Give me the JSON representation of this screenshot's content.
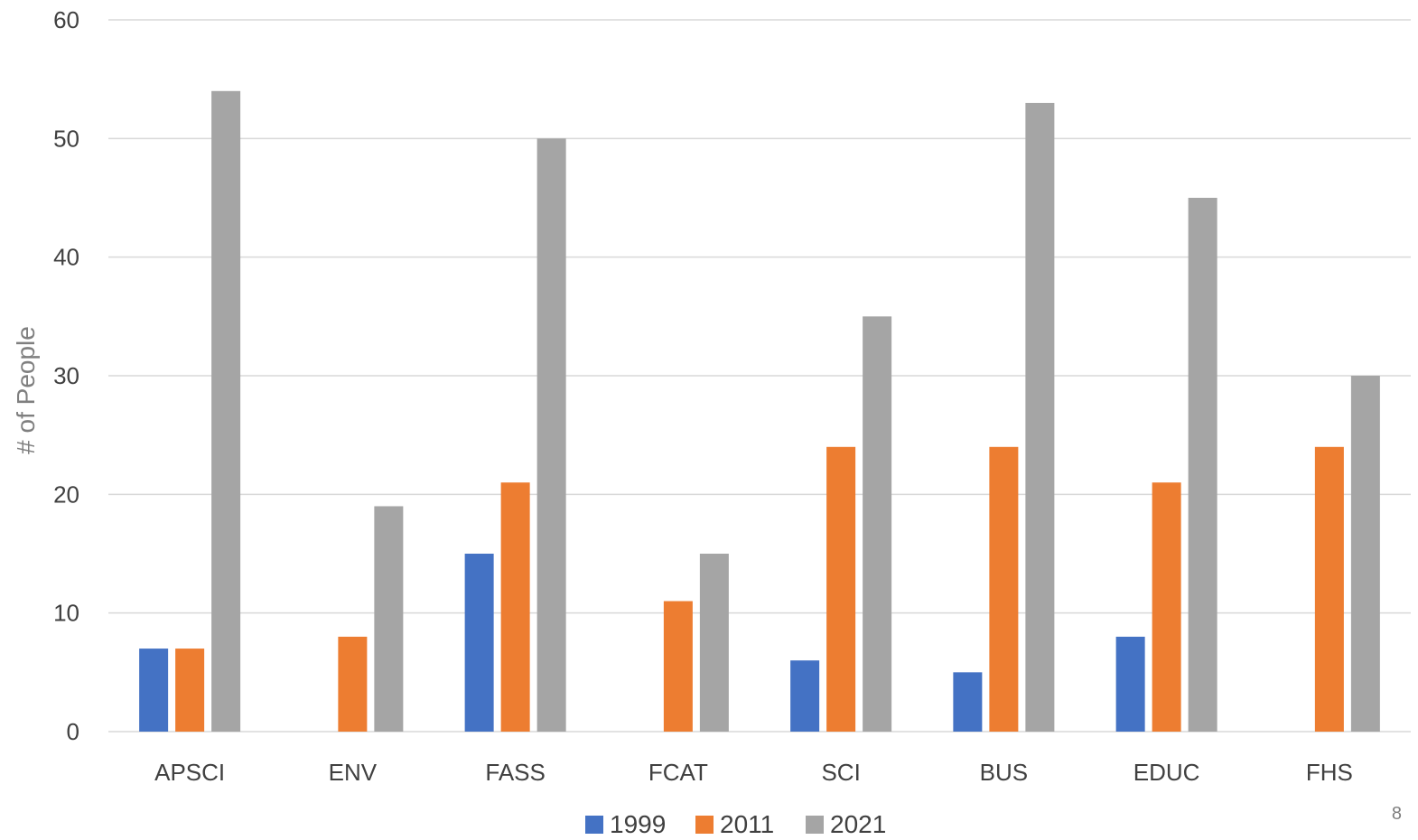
{
  "chart_data": {
    "type": "bar",
    "title": "",
    "xlabel": "",
    "ylabel": "# of People",
    "ylim": [
      0,
      60
    ],
    "yticks": [
      0,
      10,
      20,
      30,
      40,
      50,
      60
    ],
    "grid": true,
    "legend_position": "bottom",
    "categories": [
      "APSCI",
      "ENV",
      "FASS",
      "FCAT",
      "SCI",
      "BUS",
      "EDUC",
      "FHS"
    ],
    "series": [
      {
        "name": "1999",
        "color": "#4472c4",
        "values": [
          7,
          0,
          15,
          0,
          6,
          5,
          8,
          0
        ]
      },
      {
        "name": "2011",
        "color": "#ed7d31",
        "values": [
          7,
          8,
          21,
          11,
          24,
          24,
          21,
          24
        ]
      },
      {
        "name": "2021",
        "color": "#a5a5a5",
        "values": [
          54,
          19,
          50,
          15,
          35,
          53,
          45,
          30
        ]
      }
    ]
  },
  "page_number": "8"
}
